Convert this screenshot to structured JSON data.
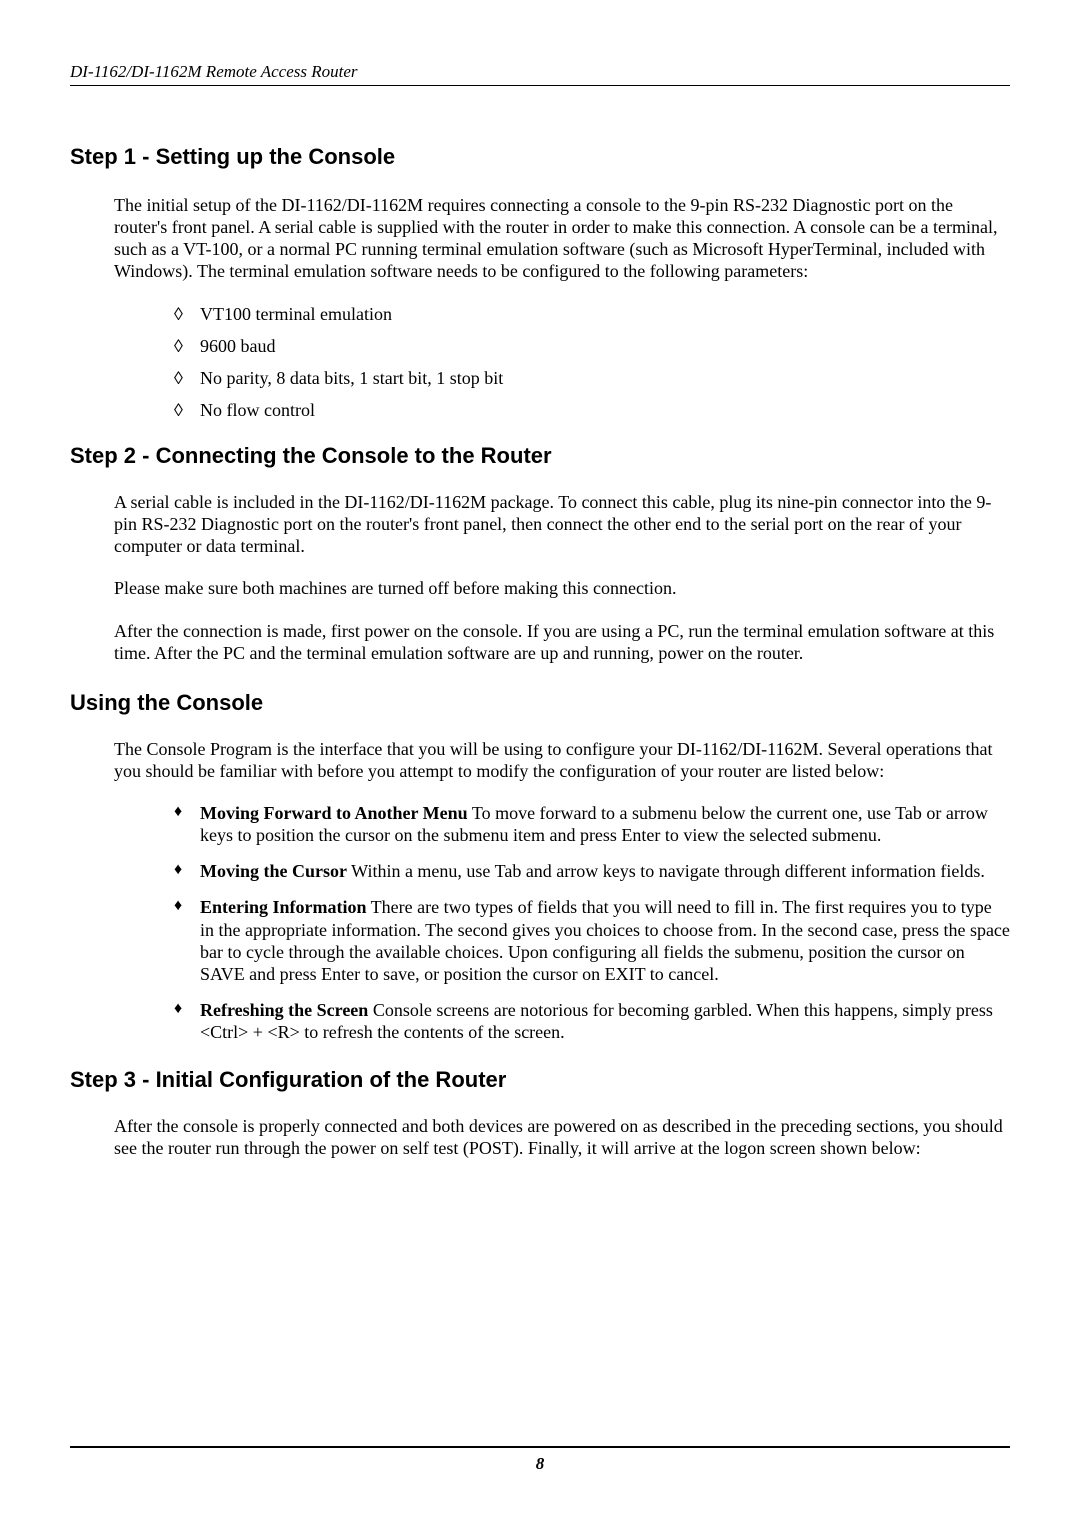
{
  "header": {
    "running_title": "DI-1162/DI-1162M Remote Access Router"
  },
  "step1": {
    "heading": "Step 1 - Setting up the Console",
    "para": "The initial setup of the DI-1162/DI-1162M requires connecting a console to the 9-pin RS-232 Diagnostic port on the router's front panel. A serial cable is supplied with the router in order to make this connection. A console can be a terminal, such as a VT-100, or a normal PC running terminal emulation software (such as Microsoft HyperTerminal, included with Windows). The terminal emulation software needs to be configured to the following parameters:",
    "bullets": [
      "VT100 terminal emulation",
      "9600 baud",
      "No parity,  8 data bits,  1 start bit,  1 stop bit",
      "No flow control"
    ]
  },
  "step2": {
    "heading": "Step 2 - Connecting the Console to the Router",
    "para1": "A serial cable is included in the DI-1162/DI-1162M package. To connect this cable, plug its nine-pin connector into the 9-pin RS-232 Diagnostic port on the router's front panel, then connect the other end to the serial port on the rear of your computer or data terminal.",
    "para2": "Please make sure both machines are turned off before making this connection.",
    "para3": "After the connection is made, first power on the console. If you are using a PC, run the terminal emulation software at this time. After the PC and the terminal emulation software are up and running, power on the router."
  },
  "using": {
    "heading": "Using the Console",
    "para": "The Console Program is the interface that you will be using to configure your DI-1162/DI-1162M. Several operations that you should be familiar with before you attempt to modify the configuration of your router are listed below:",
    "items": [
      {
        "title": "Moving Forward to Another Menu",
        "rest": "  To move forward to a submenu below the current one, use Tab or arrow keys to position the cursor on the submenu item and press Enter to view the selected submenu."
      },
      {
        "title": "Moving the Cursor",
        "rest": "  Within a menu, use Tab and arrow keys to navigate through different information fields."
      },
      {
        "title": "Entering Information",
        "rest": "  There are two types of fields that you will need to fill in. The first requires you to type in the appropriate information. The second gives you choices to choose from. In the second case, press the space bar to cycle through the available choices. Upon configuring all fields the submenu, position the cursor on SAVE and press Enter to save, or position the cursor on EXIT to cancel."
      },
      {
        "title": "Refreshing the Screen",
        "rest": "  Console screens are notorious for becoming garbled. When this happens, simply press <Ctrl> + <R> to refresh the contents of the screen."
      }
    ]
  },
  "step3": {
    "heading": "Step 3 - Initial Configuration of the Router",
    "para": "After the console is properly connected and both devices are powered on as described in the preceding sections, you should see the router run through the power on self test (POST). Finally, it will arrive at the logon screen shown below:"
  },
  "footer": {
    "page_number": "8"
  }
}
